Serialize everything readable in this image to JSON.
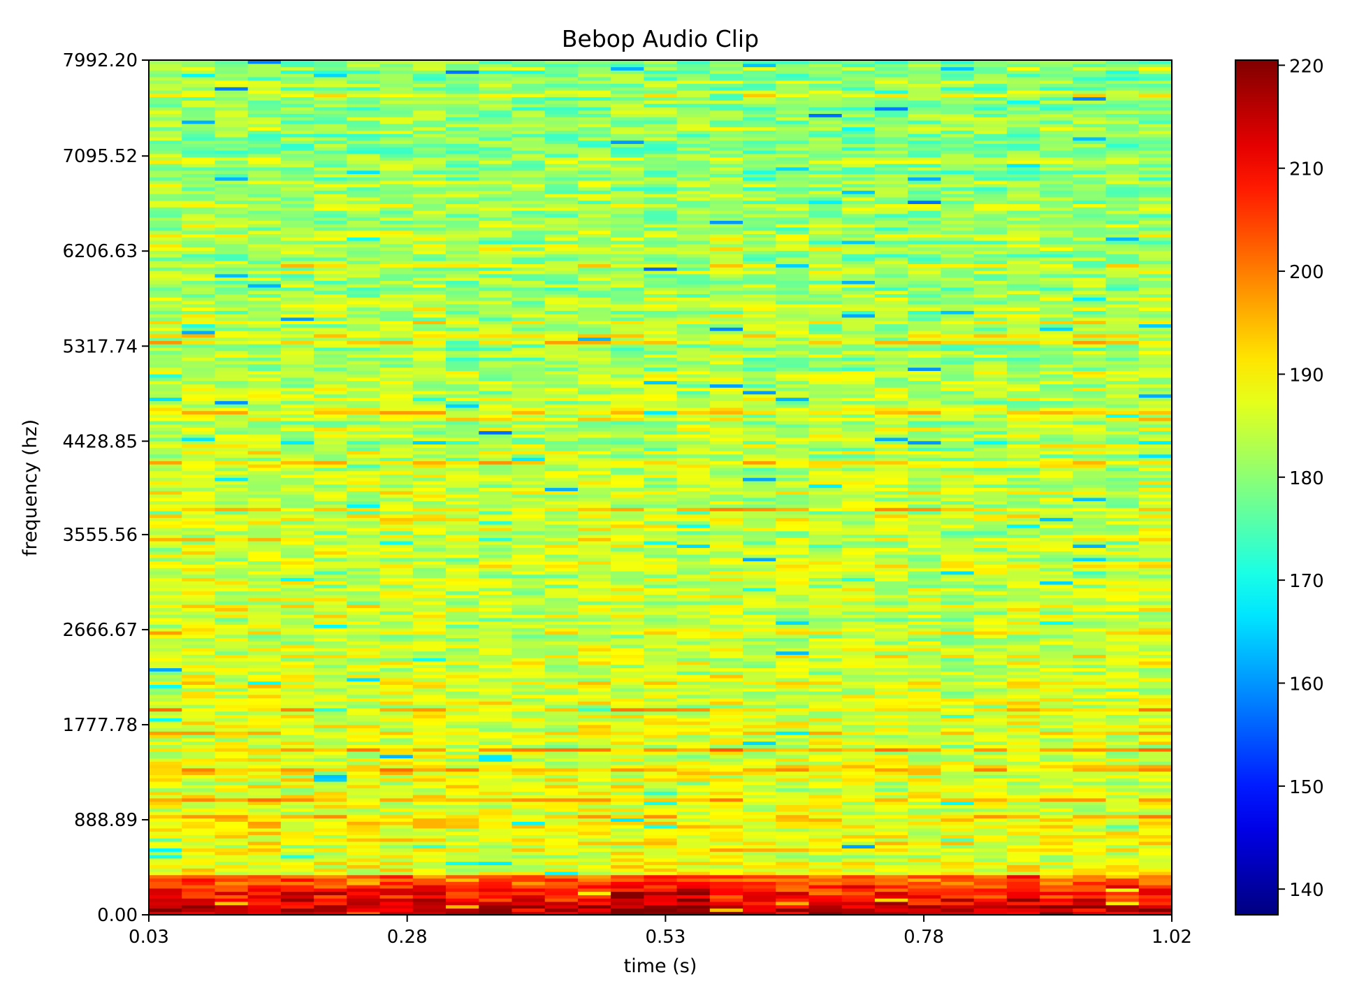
{
  "chart_data": {
    "type": "heatmap",
    "title": "Bebop Audio Clip",
    "xlabel": "time (s)",
    "ylabel": "frequency (hz)",
    "xlim": [
      0.03,
      1.02
    ],
    "ylim": [
      0.0,
      7992.2
    ],
    "x_ticks": [
      {
        "value": 0.03,
        "label": "0.03"
      },
      {
        "value": 0.28,
        "label": "0.28"
      },
      {
        "value": 0.53,
        "label": "0.53"
      },
      {
        "value": 0.78,
        "label": "0.78"
      },
      {
        "value": 1.02,
        "label": "1.02"
      }
    ],
    "y_ticks": [
      {
        "value": 0.0,
        "label": "0.00"
      },
      {
        "value": 888.89,
        "label": "888.89"
      },
      {
        "value": 1777.78,
        "label": "1777.78"
      },
      {
        "value": 2666.67,
        "label": "2666.67"
      },
      {
        "value": 3555.56,
        "label": "3555.56"
      },
      {
        "value": 4428.85,
        "label": "4428.85"
      },
      {
        "value": 5317.74,
        "label": "5317.74"
      },
      {
        "value": 6206.63,
        "label": "6206.63"
      },
      {
        "value": 7095.52,
        "label": "7095.52"
      },
      {
        "value": 7992.2,
        "label": "7992.20"
      }
    ],
    "colorbar": {
      "colormap": "jet",
      "range": [
        137.5,
        220.5
      ],
      "ticks": [
        {
          "value": 140,
          "label": "140"
        },
        {
          "value": 150,
          "label": "150"
        },
        {
          "value": 160,
          "label": "160"
        },
        {
          "value": 170,
          "label": "170"
        },
        {
          "value": 180,
          "label": "180"
        },
        {
          "value": 190,
          "label": "190"
        },
        {
          "value": 200,
          "label": "200"
        },
        {
          "value": 210,
          "label": "210"
        },
        {
          "value": 220,
          "label": "220"
        }
      ]
    },
    "time_frames": 31,
    "frequency_bins": 256,
    "grid": false,
    "legend": "none"
  }
}
